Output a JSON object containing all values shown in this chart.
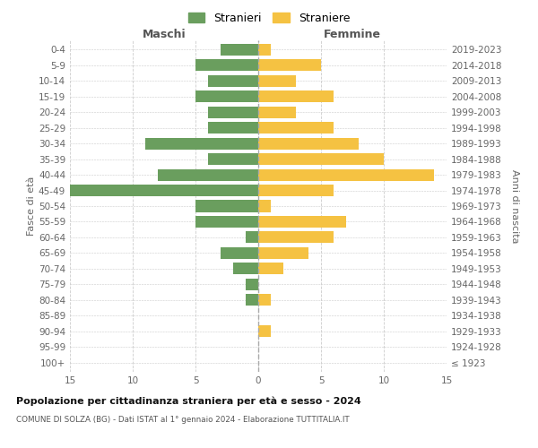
{
  "age_groups": [
    "100+",
    "95-99",
    "90-94",
    "85-89",
    "80-84",
    "75-79",
    "70-74",
    "65-69",
    "60-64",
    "55-59",
    "50-54",
    "45-49",
    "40-44",
    "35-39",
    "30-34",
    "25-29",
    "20-24",
    "15-19",
    "10-14",
    "5-9",
    "0-4"
  ],
  "birth_years": [
    "≤ 1923",
    "1924-1928",
    "1929-1933",
    "1934-1938",
    "1939-1943",
    "1944-1948",
    "1949-1953",
    "1954-1958",
    "1959-1963",
    "1964-1968",
    "1969-1973",
    "1974-1978",
    "1979-1983",
    "1984-1988",
    "1989-1993",
    "1994-1998",
    "1999-2003",
    "2004-2008",
    "2009-2013",
    "2014-2018",
    "2019-2023"
  ],
  "males": [
    0,
    0,
    0,
    0,
    1,
    1,
    2,
    3,
    1,
    5,
    5,
    15,
    8,
    4,
    9,
    4,
    4,
    5,
    4,
    5,
    3
  ],
  "females": [
    0,
    0,
    1,
    0,
    1,
    0,
    2,
    4,
    6,
    7,
    1,
    6,
    14,
    10,
    8,
    6,
    3,
    6,
    3,
    5,
    1
  ],
  "male_color": "#6a9e5e",
  "female_color": "#f5c242",
  "title": "Popolazione per cittadinanza straniera per età e sesso - 2024",
  "subtitle": "COMUNE DI SOLZA (BG) - Dati ISTAT al 1° gennaio 2024 - Elaborazione TUTTITALIA.IT",
  "label_maschi": "Maschi",
  "label_femmine": "Femmine",
  "ylabel_left": "Fasce di età",
  "ylabel_right": "Anni di nascita",
  "legend_male": "Stranieri",
  "legend_female": "Straniere",
  "xlim": 15,
  "background_color": "#ffffff",
  "grid_color": "#cccccc",
  "bar_height": 0.75
}
